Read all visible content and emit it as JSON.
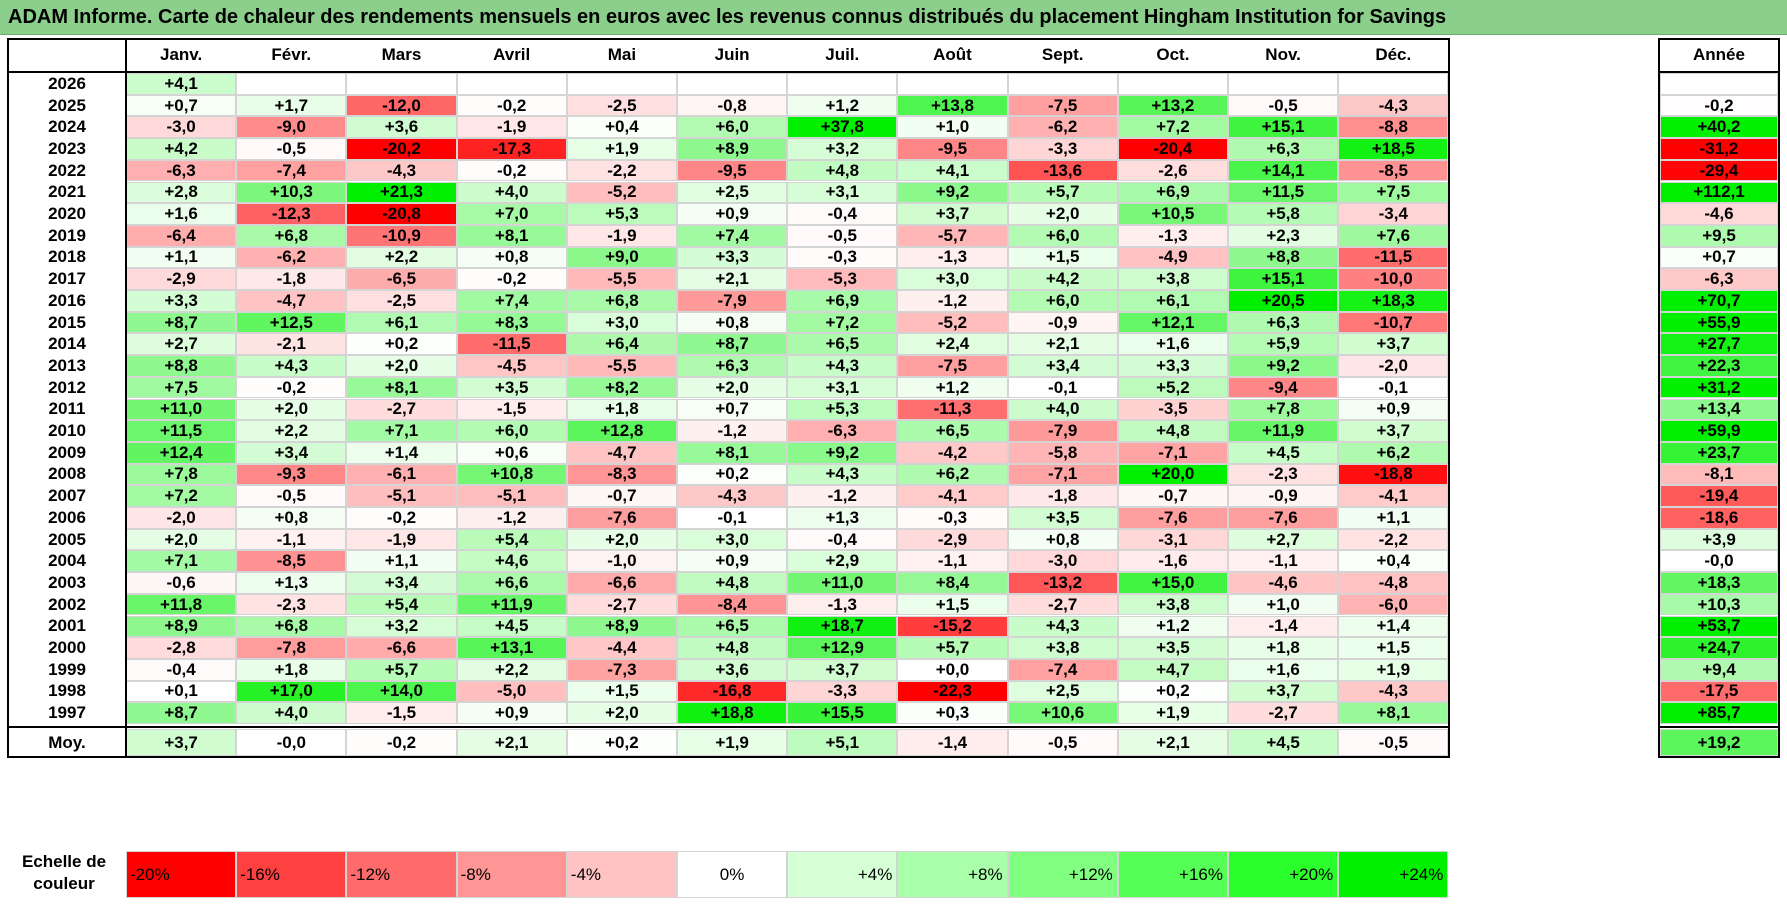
{
  "title": "ADAM Informe. Carte de chaleur des rendements mensuels en euros avec les revenus connus distribués du placement Hingham Institution for Savings",
  "chart_data": {
    "type": "heatmap",
    "title": "ADAM Informe. Carte de chaleur des rendements mensuels en euros avec les revenus connus distribués du placement Hingham Institution for Savings",
    "months": [
      "Janv.",
      "Févr.",
      "Mars",
      "Avril",
      "Mai",
      "Juin",
      "Juil.",
      "Août",
      "Sept.",
      "Oct.",
      "Nov.",
      "Déc."
    ],
    "year_header": "Année",
    "rows": [
      {
        "year": "2026",
        "values": [
          "+4,1",
          "",
          "",
          "",
          "",
          "",
          "",
          "",
          "",
          "",
          "",
          ""
        ],
        "annual": ""
      },
      {
        "year": "2025",
        "values": [
          "+0,7",
          "+1,7",
          "-12,0",
          "-0,2",
          "-2,5",
          "-0,8",
          "+1,2",
          "+13,8",
          "-7,5",
          "+13,2",
          "-0,5",
          "-4,3"
        ],
        "annual": "-0,2"
      },
      {
        "year": "2024",
        "values": [
          "-3,0",
          "-9,0",
          "+3,6",
          "-1,9",
          "+0,4",
          "+6,0",
          "+37,8",
          "+1,0",
          "-6,2",
          "+7,2",
          "+15,1",
          "-8,8"
        ],
        "annual": "+40,2"
      },
      {
        "year": "2023",
        "values": [
          "+4,2",
          "-0,5",
          "-20,2",
          "-17,3",
          "+1,9",
          "+8,9",
          "+3,2",
          "-9,5",
          "-3,3",
          "-20,4",
          "+6,3",
          "+18,5"
        ],
        "annual": "-31,2"
      },
      {
        "year": "2022",
        "values": [
          "-6,3",
          "-7,4",
          "-4,3",
          "-0,2",
          "-2,2",
          "-9,5",
          "+4,8",
          "+4,1",
          "-13,6",
          "-2,6",
          "+14,1",
          "-8,5"
        ],
        "annual": "-29,4"
      },
      {
        "year": "2021",
        "values": [
          "+2,8",
          "+10,3",
          "+21,3",
          "+4,0",
          "-5,2",
          "+2,5",
          "+3,1",
          "+9,2",
          "+5,7",
          "+6,9",
          "+11,5",
          "+7,5"
        ],
        "annual": "+112,1"
      },
      {
        "year": "2020",
        "values": [
          "+1,6",
          "-12,3",
          "-20,8",
          "+7,0",
          "+5,3",
          "+0,9",
          "-0,4",
          "+3,7",
          "+2,0",
          "+10,5",
          "+5,8",
          "-3,4"
        ],
        "annual": "-4,6"
      },
      {
        "year": "2019",
        "values": [
          "-6,4",
          "+6,8",
          "-10,9",
          "+8,1",
          "-1,9",
          "+7,4",
          "-0,5",
          "-5,7",
          "+6,0",
          "-1,3",
          "+2,3",
          "+7,6"
        ],
        "annual": "+9,5"
      },
      {
        "year": "2018",
        "values": [
          "+1,1",
          "-6,2",
          "+2,2",
          "+0,8",
          "+9,0",
          "+3,3",
          "-0,3",
          "-1,3",
          "+1,5",
          "-4,9",
          "+8,8",
          "-11,5"
        ],
        "annual": "+0,7"
      },
      {
        "year": "2017",
        "values": [
          "-2,9",
          "-1,8",
          "-6,5",
          "-0,2",
          "-5,5",
          "+2,1",
          "-5,3",
          "+3,0",
          "+4,2",
          "+3,8",
          "+15,1",
          "-10,0"
        ],
        "annual": "-6,3"
      },
      {
        "year": "2016",
        "values": [
          "+3,3",
          "-4,7",
          "-2,5",
          "+7,4",
          "+6,8",
          "-7,9",
          "+6,9",
          "-1,2",
          "+6,0",
          "+6,1",
          "+20,5",
          "+18,3"
        ],
        "annual": "+70,7"
      },
      {
        "year": "2015",
        "values": [
          "+8,7",
          "+12,5",
          "+6,1",
          "+8,3",
          "+3,0",
          "+0,8",
          "+7,2",
          "-5,2",
          "-0,9",
          "+12,1",
          "+6,3",
          "-10,7"
        ],
        "annual": "+55,9"
      },
      {
        "year": "2014",
        "values": [
          "+2,7",
          "-2,1",
          "+0,2",
          "-11,5",
          "+6,4",
          "+8,7",
          "+6,5",
          "+2,4",
          "+2,1",
          "+1,6",
          "+5,9",
          "+3,7"
        ],
        "annual": "+27,7"
      },
      {
        "year": "2013",
        "values": [
          "+8,8",
          "+4,3",
          "+2,0",
          "-4,5",
          "-5,5",
          "+6,3",
          "+4,3",
          "-7,5",
          "+3,4",
          "+3,3",
          "+9,2",
          "-2,0"
        ],
        "annual": "+22,3"
      },
      {
        "year": "2012",
        "values": [
          "+7,5",
          "-0,2",
          "+8,1",
          "+3,5",
          "+8,2",
          "+2,0",
          "+3,1",
          "+1,2",
          "-0,1",
          "+5,2",
          "-9,4",
          "-0,1"
        ],
        "annual": "+31,2"
      },
      {
        "year": "2011",
        "values": [
          "+11,0",
          "+2,0",
          "-2,7",
          "-1,5",
          "+1,8",
          "+0,7",
          "+5,3",
          "-11,3",
          "+4,0",
          "-3,5",
          "+7,8",
          "+0,9"
        ],
        "annual": "+13,4"
      },
      {
        "year": "2010",
        "values": [
          "+11,5",
          "+2,2",
          "+7,1",
          "+6,0",
          "+12,8",
          "-1,2",
          "-6,3",
          "+6,5",
          "-7,9",
          "+4,8",
          "+11,9",
          "+3,7"
        ],
        "annual": "+59,9"
      },
      {
        "year": "2009",
        "values": [
          "+12,4",
          "+3,4",
          "+1,4",
          "+0,6",
          "-4,7",
          "+8,1",
          "+9,2",
          "-4,2",
          "-5,8",
          "-7,1",
          "+4,5",
          "+6,2"
        ],
        "annual": "+23,7"
      },
      {
        "year": "2008",
        "values": [
          "+7,8",
          "-9,3",
          "-6,1",
          "+10,8",
          "-8,3",
          "+0,2",
          "+4,3",
          "+6,2",
          "-7,1",
          "+20,0",
          "-2,3",
          "-18,8"
        ],
        "annual": "-8,1"
      },
      {
        "year": "2007",
        "values": [
          "+7,2",
          "-0,5",
          "-5,1",
          "-5,1",
          "-0,7",
          "-4,3",
          "-1,2",
          "-4,1",
          "-1,8",
          "-0,7",
          "-0,9",
          "-4,1"
        ],
        "annual": "-19,4"
      },
      {
        "year": "2006",
        "values": [
          "-2,0",
          "+0,8",
          "-0,2",
          "-1,2",
          "-7,6",
          "-0,1",
          "+1,3",
          "-0,3",
          "+3,5",
          "-7,6",
          "-7,6",
          "+1,1"
        ],
        "annual": "-18,6"
      },
      {
        "year": "2005",
        "values": [
          "+2,0",
          "-1,1",
          "-1,9",
          "+5,4",
          "+2,0",
          "+3,0",
          "-0,4",
          "-2,9",
          "+0,8",
          "-3,1",
          "+2,7",
          "-2,2"
        ],
        "annual": "+3,9"
      },
      {
        "year": "2004",
        "values": [
          "+7,1",
          "-8,5",
          "+1,1",
          "+4,6",
          "-1,0",
          "+0,9",
          "+2,9",
          "-1,1",
          "-3,0",
          "-1,6",
          "-1,1",
          "+0,4"
        ],
        "annual": "-0,0"
      },
      {
        "year": "2003",
        "values": [
          "-0,6",
          "+1,3",
          "+3,4",
          "+6,6",
          "-6,6",
          "+4,8",
          "+11,0",
          "+8,4",
          "-13,2",
          "+15,0",
          "-4,6",
          "-4,8"
        ],
        "annual": "+18,3"
      },
      {
        "year": "2002",
        "values": [
          "+11,8",
          "-2,3",
          "+5,4",
          "+11,9",
          "-2,7",
          "-8,4",
          "-1,3",
          "+1,5",
          "-2,7",
          "+3,8",
          "+1,0",
          "-6,0"
        ],
        "annual": "+10,3"
      },
      {
        "year": "2001",
        "values": [
          "+8,9",
          "+6,8",
          "+3,2",
          "+4,5",
          "+8,9",
          "+6,5",
          "+18,7",
          "-15,2",
          "+4,3",
          "+1,2",
          "-1,4",
          "+1,4"
        ],
        "annual": "+53,7"
      },
      {
        "year": "2000",
        "values": [
          "-2,8",
          "-7,8",
          "-6,6",
          "+13,1",
          "-4,4",
          "+4,8",
          "+12,9",
          "+5,7",
          "+3,8",
          "+3,5",
          "+1,8",
          "+1,5"
        ],
        "annual": "+24,7"
      },
      {
        "year": "1999",
        "values": [
          "-0,4",
          "+1,8",
          "+5,7",
          "+2,2",
          "-7,3",
          "+3,6",
          "+3,7",
          "+0,0",
          "-7,4",
          "+4,7",
          "+1,6",
          "+1,9"
        ],
        "annual": "+9,4"
      },
      {
        "year": "1998",
        "values": [
          "+0,1",
          "+17,0",
          "+14,0",
          "-5,0",
          "+1,5",
          "-16,8",
          "-3,3",
          "-22,3",
          "+2,5",
          "+0,2",
          "+3,7",
          "-4,3"
        ],
        "annual": "-17,5"
      },
      {
        "year": "1997",
        "values": [
          "+8,7",
          "+4,0",
          "-1,5",
          "+0,9",
          "+2,0",
          "+18,8",
          "+15,5",
          "+0,3",
          "+10,6",
          "+1,9",
          "-2,7",
          "+8,1"
        ],
        "annual": "+85,7"
      }
    ],
    "average": {
      "label": "Moy.",
      "values": [
        "+3,7",
        "-0,0",
        "-0,2",
        "+2,1",
        "+0,2",
        "+1,9",
        "+5,1",
        "-1,4",
        "-0,5",
        "+2,1",
        "+4,5",
        "-0,5"
      ],
      "annual": "+19,2"
    },
    "color_scale": {
      "label": "Echelle de couleur",
      "steps": [
        {
          "label": "-20%",
          "color": "#ff0000"
        },
        {
          "label": "-16%",
          "color": "#ff4040"
        },
        {
          "label": "-12%",
          "color": "#ff6a6a"
        },
        {
          "label": "-8%",
          "color": "#ff9595"
        },
        {
          "label": "-4%",
          "color": "#ffc3c3"
        },
        {
          "label": "0%",
          "color": "#ffffff"
        },
        {
          "label": "+4%",
          "color": "#d5ffd5"
        },
        {
          "label": "+8%",
          "color": "#aaffaa"
        },
        {
          "label": "+12%",
          "color": "#80ff80"
        },
        {
          "label": "+16%",
          "color": "#55ff55"
        },
        {
          "label": "+20%",
          "color": "#2bff2b"
        },
        {
          "label": "+24%",
          "color": "#00f000"
        }
      ]
    }
  },
  "colors": {
    "title_bg": "#8ccf8c",
    "negative_max": "#ff0000",
    "positive_max": "#00f000"
  }
}
